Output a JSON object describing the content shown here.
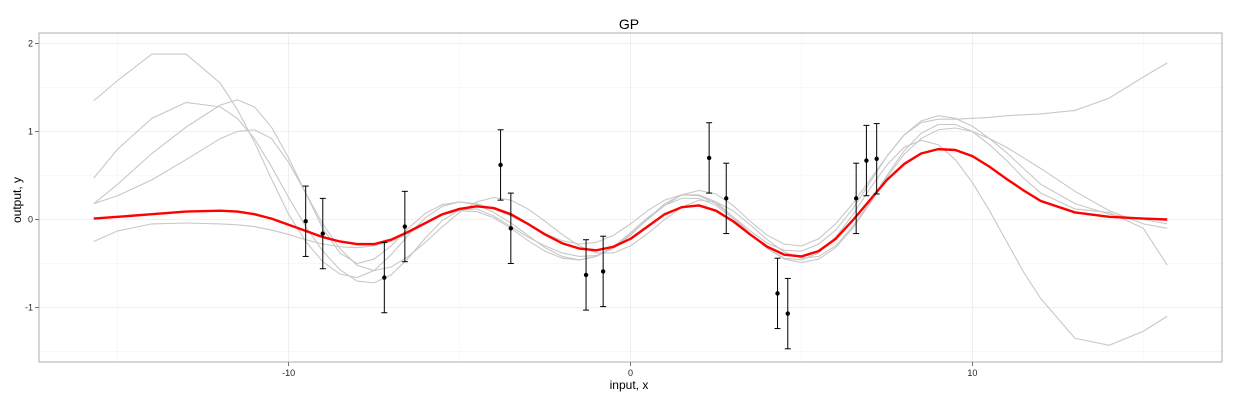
{
  "chart_data": {
    "type": "line",
    "title": "GP",
    "xlabel": "input, x",
    "ylabel": "output, y",
    "xlim": [
      -17.3,
      17.3
    ],
    "ylim": [
      -1.62,
      2.12
    ],
    "x_ticks": [
      -10,
      0,
      10
    ],
    "y_ticks": [
      -1,
      0,
      1,
      2
    ],
    "grid": true,
    "colors": {
      "mean": "#ff0000",
      "samples": "#c8c8c8",
      "points": "#000000",
      "grid": "#ebebeb",
      "border": "#999999"
    },
    "observations": [
      {
        "x": -9.5,
        "y": -0.02,
        "lo": -0.42,
        "hi": 0.38
      },
      {
        "x": -9.0,
        "y": -0.16,
        "lo": -0.56,
        "hi": 0.24
      },
      {
        "x": -7.2,
        "y": -0.66,
        "lo": -1.06,
        "hi": -0.26
      },
      {
        "x": -6.6,
        "y": -0.08,
        "lo": -0.48,
        "hi": 0.32
      },
      {
        "x": -3.8,
        "y": 0.62,
        "lo": 0.22,
        "hi": 1.02
      },
      {
        "x": -3.5,
        "y": -0.1,
        "lo": -0.5,
        "hi": 0.3
      },
      {
        "x": -1.3,
        "y": -0.63,
        "lo": -1.03,
        "hi": -0.23
      },
      {
        "x": -0.8,
        "y": -0.59,
        "lo": -0.99,
        "hi": -0.19
      },
      {
        "x": 2.3,
        "y": 0.7,
        "lo": 0.3,
        "hi": 1.1
      },
      {
        "x": 2.8,
        "y": 0.24,
        "lo": -0.16,
        "hi": 0.64
      },
      {
        "x": 4.3,
        "y": -0.84,
        "lo": -1.24,
        "hi": -0.44
      },
      {
        "x": 4.6,
        "y": -1.07,
        "lo": -1.47,
        "hi": -0.67
      },
      {
        "x": 6.6,
        "y": 0.24,
        "lo": -0.16,
        "hi": 0.64
      },
      {
        "x": 6.9,
        "y": 0.67,
        "lo": 0.27,
        "hi": 1.07
      },
      {
        "x": 7.2,
        "y": 0.69,
        "lo": 0.29,
        "hi": 1.09
      }
    ],
    "series": [
      {
        "role": "mean",
        "x": [
          -15.7,
          -15,
          -14,
          -13,
          -12,
          -11.5,
          -11,
          -10.5,
          -10,
          -9.5,
          -9,
          -8.5,
          -8,
          -7.5,
          -7,
          -6.5,
          -6,
          -5.5,
          -5,
          -4.5,
          -4,
          -3.5,
          -3,
          -2.5,
          -2,
          -1.5,
          -1,
          -0.5,
          0,
          0.5,
          1,
          1.5,
          2,
          2.5,
          3,
          3.5,
          4,
          4.5,
          5,
          5.5,
          6,
          6.5,
          7,
          7.5,
          8,
          8.5,
          9,
          9.5,
          10,
          10.5,
          11,
          11.5,
          12,
          13,
          14,
          15,
          15.7
        ],
        "y": [
          0.01,
          0.03,
          0.06,
          0.09,
          0.1,
          0.09,
          0.06,
          0.01,
          -0.06,
          -0.13,
          -0.2,
          -0.25,
          -0.28,
          -0.28,
          -0.23,
          -0.14,
          -0.04,
          0.06,
          0.12,
          0.15,
          0.13,
          0.06,
          -0.05,
          -0.17,
          -0.27,
          -0.33,
          -0.35,
          -0.31,
          -0.22,
          -0.08,
          0.06,
          0.14,
          0.16,
          0.1,
          -0.02,
          -0.17,
          -0.31,
          -0.4,
          -0.42,
          -0.36,
          -0.22,
          -0.01,
          0.22,
          0.45,
          0.63,
          0.75,
          0.8,
          0.79,
          0.72,
          0.6,
          0.46,
          0.33,
          0.21,
          0.08,
          0.03,
          0.01,
          0.0
        ]
      },
      {
        "role": "sample",
        "x": [
          -15.7,
          -15,
          -14,
          -13,
          -12,
          -11.5,
          -11,
          -10.5,
          -10,
          -9.5,
          -9,
          -8.5,
          -8,
          -7.5,
          -7,
          -6.5,
          -6,
          -5.5,
          -5,
          -4.5,
          -4,
          -3.5,
          -3,
          -2.5,
          -2,
          -1.5,
          -1,
          -0.5,
          0,
          0.5,
          1,
          1.5,
          2,
          2.5,
          3,
          3.5,
          4,
          4.5,
          5,
          5.5,
          6,
          6.5,
          7,
          7.5,
          8,
          8.5,
          9,
          9.5,
          10,
          10.5,
          11,
          11.5,
          12,
          13,
          14,
          15,
          15.7
        ],
        "y": [
          1.35,
          1.58,
          1.88,
          1.88,
          1.55,
          1.25,
          0.88,
          0.46,
          0.06,
          -0.25,
          -0.48,
          -0.62,
          -0.66,
          -0.58,
          -0.4,
          -0.18,
          0.02,
          0.15,
          0.2,
          0.17,
          0.08,
          -0.04,
          -0.18,
          -0.32,
          -0.42,
          -0.46,
          -0.42,
          -0.31,
          -0.15,
          0.02,
          0.16,
          0.24,
          0.24,
          0.16,
          0.01,
          -0.17,
          -0.33,
          -0.44,
          -0.46,
          -0.38,
          -0.2,
          0.05,
          0.35,
          0.62,
          0.82,
          0.9,
          0.85,
          0.68,
          0.42,
          0.1,
          -0.25,
          -0.6,
          -0.9,
          -1.35,
          -1.43,
          -1.27,
          -1.1
        ]
      },
      {
        "role": "sample",
        "x": [
          -15.7,
          -15,
          -14,
          -13,
          -12,
          -11.5,
          -11,
          -10.5,
          -10,
          -9.5,
          -9,
          -8.5,
          -8,
          -7.5,
          -7,
          -6.5,
          -6,
          -5.5,
          -5,
          -4.5,
          -4,
          -3.5,
          -3,
          -2.5,
          -2,
          -1.5,
          -1,
          -0.5,
          0,
          0.5,
          1,
          1.5,
          2,
          2.5,
          3,
          3.5,
          4,
          4.5,
          5,
          5.5,
          6,
          6.5,
          7,
          7.5,
          8,
          8.5,
          9,
          9.5,
          10,
          10.5,
          11,
          11.5,
          12,
          13,
          14,
          15,
          15.7
        ],
        "y": [
          0.47,
          0.8,
          1.15,
          1.33,
          1.28,
          1.15,
          0.92,
          0.6,
          0.25,
          -0.08,
          -0.36,
          -0.57,
          -0.7,
          -0.72,
          -0.63,
          -0.44,
          -0.21,
          -0.01,
          0.11,
          0.12,
          0.04,
          -0.08,
          -0.2,
          -0.3,
          -0.38,
          -0.42,
          -0.41,
          -0.33,
          -0.18,
          0.01,
          0.18,
          0.28,
          0.28,
          0.2,
          0.03,
          -0.16,
          -0.33,
          -0.45,
          -0.49,
          -0.45,
          -0.32,
          -0.1,
          0.18,
          0.48,
          0.74,
          0.92,
          1.02,
          1.04,
          1.0,
          0.92,
          0.82,
          0.7,
          0.58,
          0.32,
          0.1,
          -0.05,
          -0.1
        ]
      },
      {
        "role": "sample",
        "x": [
          -15.7,
          -15,
          -14,
          -13,
          -12,
          -11.5,
          -11,
          -10.5,
          -10,
          -9.5,
          -9,
          -8.5,
          -8,
          -7.5,
          -7,
          -6.5,
          -6,
          -5.5,
          -5,
          -4.5,
          -4,
          -3.5,
          -3,
          -2.5,
          -2,
          -1.5,
          -1,
          -0.5,
          0,
          0.5,
          1,
          1.5,
          2,
          2.5,
          3,
          3.5,
          4,
          4.5,
          5,
          5.5,
          6,
          6.5,
          7,
          7.5,
          8,
          8.5,
          9,
          9.5,
          10,
          10.5,
          11,
          11.5,
          12,
          13,
          14,
          15,
          15.7
        ],
        "y": [
          0.18,
          0.4,
          0.75,
          1.05,
          1.3,
          1.36,
          1.28,
          1.05,
          0.7,
          0.3,
          -0.1,
          -0.38,
          -0.5,
          -0.45,
          -0.3,
          -0.1,
          0.07,
          0.17,
          0.2,
          0.18,
          0.12,
          0.04,
          -0.06,
          -0.16,
          -0.24,
          -0.28,
          -0.26,
          -0.18,
          -0.05,
          0.1,
          0.22,
          0.28,
          0.27,
          0.18,
          0.03,
          -0.13,
          -0.27,
          -0.35,
          -0.36,
          -0.28,
          -0.12,
          0.12,
          0.42,
          0.72,
          0.96,
          1.1,
          1.14,
          1.14,
          1.15,
          1.16,
          1.18,
          1.19,
          1.2,
          1.24,
          1.38,
          1.62,
          1.78
        ]
      },
      {
        "role": "sample",
        "x": [
          -15.7,
          -15,
          -14,
          -13,
          -12,
          -11.5,
          -11,
          -10.5,
          -10,
          -9.5,
          -9,
          -8.5,
          -8,
          -7.5,
          -7,
          -6.5,
          -6,
          -5.5,
          -5,
          -4.5,
          -4,
          -3.5,
          -3,
          -2.5,
          -2,
          -1.5,
          -1,
          -0.5,
          0,
          0.5,
          1,
          1.5,
          2,
          2.5,
          3,
          3.5,
          4,
          4.5,
          5,
          5.5,
          6,
          6.5,
          7,
          7.5,
          8,
          8.5,
          9,
          9.5,
          10,
          10.5,
          11,
          11.5,
          12,
          13,
          14,
          15,
          15.7
        ],
        "y": [
          -0.25,
          -0.13,
          -0.05,
          -0.04,
          -0.05,
          -0.06,
          -0.08,
          -0.12,
          -0.17,
          -0.23,
          -0.28,
          -0.31,
          -0.32,
          -0.3,
          -0.25,
          -0.16,
          -0.05,
          0.05,
          0.1,
          0.09,
          0.02,
          -0.1,
          -0.24,
          -0.36,
          -0.44,
          -0.46,
          -0.42,
          -0.32,
          -0.17,
          0.0,
          0.16,
          0.28,
          0.33,
          0.29,
          0.16,
          -0.02,
          -0.18,
          -0.28,
          -0.3,
          -0.22,
          -0.05,
          0.18,
          0.45,
          0.72,
          0.96,
          1.12,
          1.18,
          1.15,
          1.06,
          0.92,
          0.76,
          0.58,
          0.4,
          0.18,
          0.06,
          0.0,
          -0.05
        ]
      },
      {
        "role": "sample",
        "x": [
          -15.7,
          -15,
          -14,
          -13,
          -12,
          -11.5,
          -11,
          -10.5,
          -10,
          -9.5,
          -9,
          -8.5,
          -8,
          -7.5,
          -7,
          -6.5,
          -6,
          -5.5,
          -5,
          -4.5,
          -4,
          -3.5,
          -3,
          -2.5,
          -2,
          -1.5,
          -1,
          -0.5,
          0,
          0.5,
          1,
          1.5,
          2,
          2.5,
          3,
          3.5,
          4,
          4.5,
          5,
          5.5,
          6,
          6.5,
          7,
          7.5,
          8,
          8.5,
          9,
          9.5,
          10,
          10.5,
          11,
          11.5,
          12,
          13,
          14,
          15,
          15.7
        ],
        "y": [
          0.18,
          0.27,
          0.45,
          0.68,
          0.92,
          1.0,
          1.02,
          0.92,
          0.65,
          0.3,
          -0.05,
          -0.33,
          -0.52,
          -0.58,
          -0.54,
          -0.42,
          -0.26,
          -0.08,
          0.08,
          0.2,
          0.25,
          0.22,
          0.12,
          -0.02,
          -0.17,
          -0.3,
          -0.38,
          -0.38,
          -0.3,
          -0.16,
          0.0,
          0.14,
          0.22,
          0.2,
          0.1,
          -0.06,
          -0.23,
          -0.37,
          -0.44,
          -0.42,
          -0.3,
          -0.08,
          0.2,
          0.5,
          0.78,
          0.98,
          1.08,
          1.08,
          1.0,
          0.85,
          0.67,
          0.47,
          0.3,
          0.12,
          0.08,
          -0.1,
          -0.52
        ]
      }
    ]
  }
}
